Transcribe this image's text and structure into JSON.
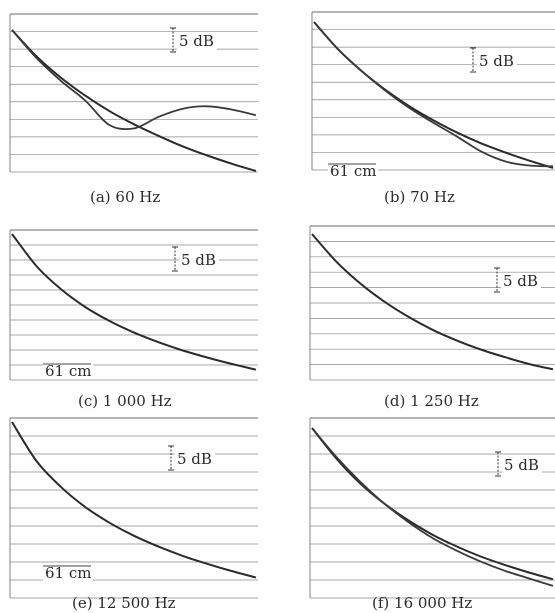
{
  "chart_data": [
    {
      "type": "line",
      "caption": "(a)  60 Hz",
      "scale_label": "5 dB",
      "length_label": "",
      "x": [
        0,
        10,
        20,
        30,
        40,
        50,
        60,
        70,
        80,
        90,
        100
      ],
      "series": [
        {
          "values": [
            0,
            -3.2,
            -5.8,
            -8.0,
            -9.9,
            -11.5,
            -12.9,
            -14.2,
            -15.3,
            -16.3,
            -17.2
          ]
        },
        {
          "values": [
            0,
            -3.4,
            -6.2,
            -8.6,
            -11.6,
            -12.0,
            -10.6,
            -9.6,
            -9.3,
            -9.7,
            -10.4
          ]
        }
      ]
    },
    {
      "type": "line",
      "caption": "(b)  70 Hz",
      "scale_label": "5 dB",
      "length_label": "61 cm",
      "x": [
        0,
        10,
        20,
        30,
        40,
        50,
        60,
        70,
        80,
        90,
        100
      ],
      "series": [
        {
          "values": [
            0,
            -3.3,
            -6.0,
            -8.3,
            -10.3,
            -12.0,
            -13.5,
            -14.8,
            -15.9,
            -16.9,
            -17.8
          ]
        },
        {
          "values": [
            0,
            -3.3,
            -6.0,
            -8.4,
            -10.5,
            -12.3,
            -14.0,
            -15.8,
            -17.0,
            -17.5,
            -17.6
          ]
        }
      ]
    },
    {
      "type": "line",
      "caption": "(c)  1 000 Hz",
      "scale_label": "5 dB",
      "length_label": "61 cm",
      "x": [
        0,
        10,
        20,
        30,
        40,
        50,
        60,
        70,
        80,
        90,
        100
      ],
      "series": [
        {
          "values": [
            0,
            -5.0,
            -8.6,
            -11.4,
            -13.6,
            -15.4,
            -16.9,
            -18.2,
            -19.3,
            -20.3,
            -21.2
          ]
        }
      ]
    },
    {
      "type": "line",
      "caption": "(d)  1 250 Hz",
      "scale_label": "5 dB",
      "length_label": "",
      "x": [
        0,
        10,
        20,
        30,
        40,
        50,
        60,
        70,
        80,
        90,
        100
      ],
      "series": [
        {
          "values": [
            0,
            -3.6,
            -6.5,
            -8.9,
            -10.9,
            -12.6,
            -14.0,
            -15.2,
            -16.2,
            -17.1,
            -17.8
          ]
        }
      ]
    },
    {
      "type": "line",
      "caption": "(e)  12 500 Hz",
      "scale_label": "5 dB",
      "length_label": "61 cm",
      "x": [
        0,
        10,
        20,
        30,
        40,
        50,
        60,
        70,
        80,
        90,
        100
      ],
      "series": [
        {
          "values": [
            0,
            -5.4,
            -9.0,
            -11.8,
            -14.0,
            -15.8,
            -17.3,
            -18.6,
            -19.7,
            -20.7,
            -21.6
          ]
        }
      ]
    },
    {
      "type": "line",
      "caption": "(f)  16 000 Hz",
      "scale_label": "5 dB",
      "length_label": "",
      "x": [
        0,
        10,
        20,
        30,
        40,
        50,
        60,
        70,
        80,
        90,
        100
      ],
      "series": [
        {
          "values": [
            0,
            -3.6,
            -6.6,
            -9.0,
            -11.0,
            -12.7,
            -14.1,
            -15.3,
            -16.3,
            -17.2,
            -18.0
          ]
        },
        {
          "values": [
            0,
            -3.4,
            -6.4,
            -9.0,
            -11.2,
            -13.1,
            -14.6,
            -15.9,
            -17.0,
            -17.9,
            -18.8
          ]
        }
      ]
    }
  ]
}
